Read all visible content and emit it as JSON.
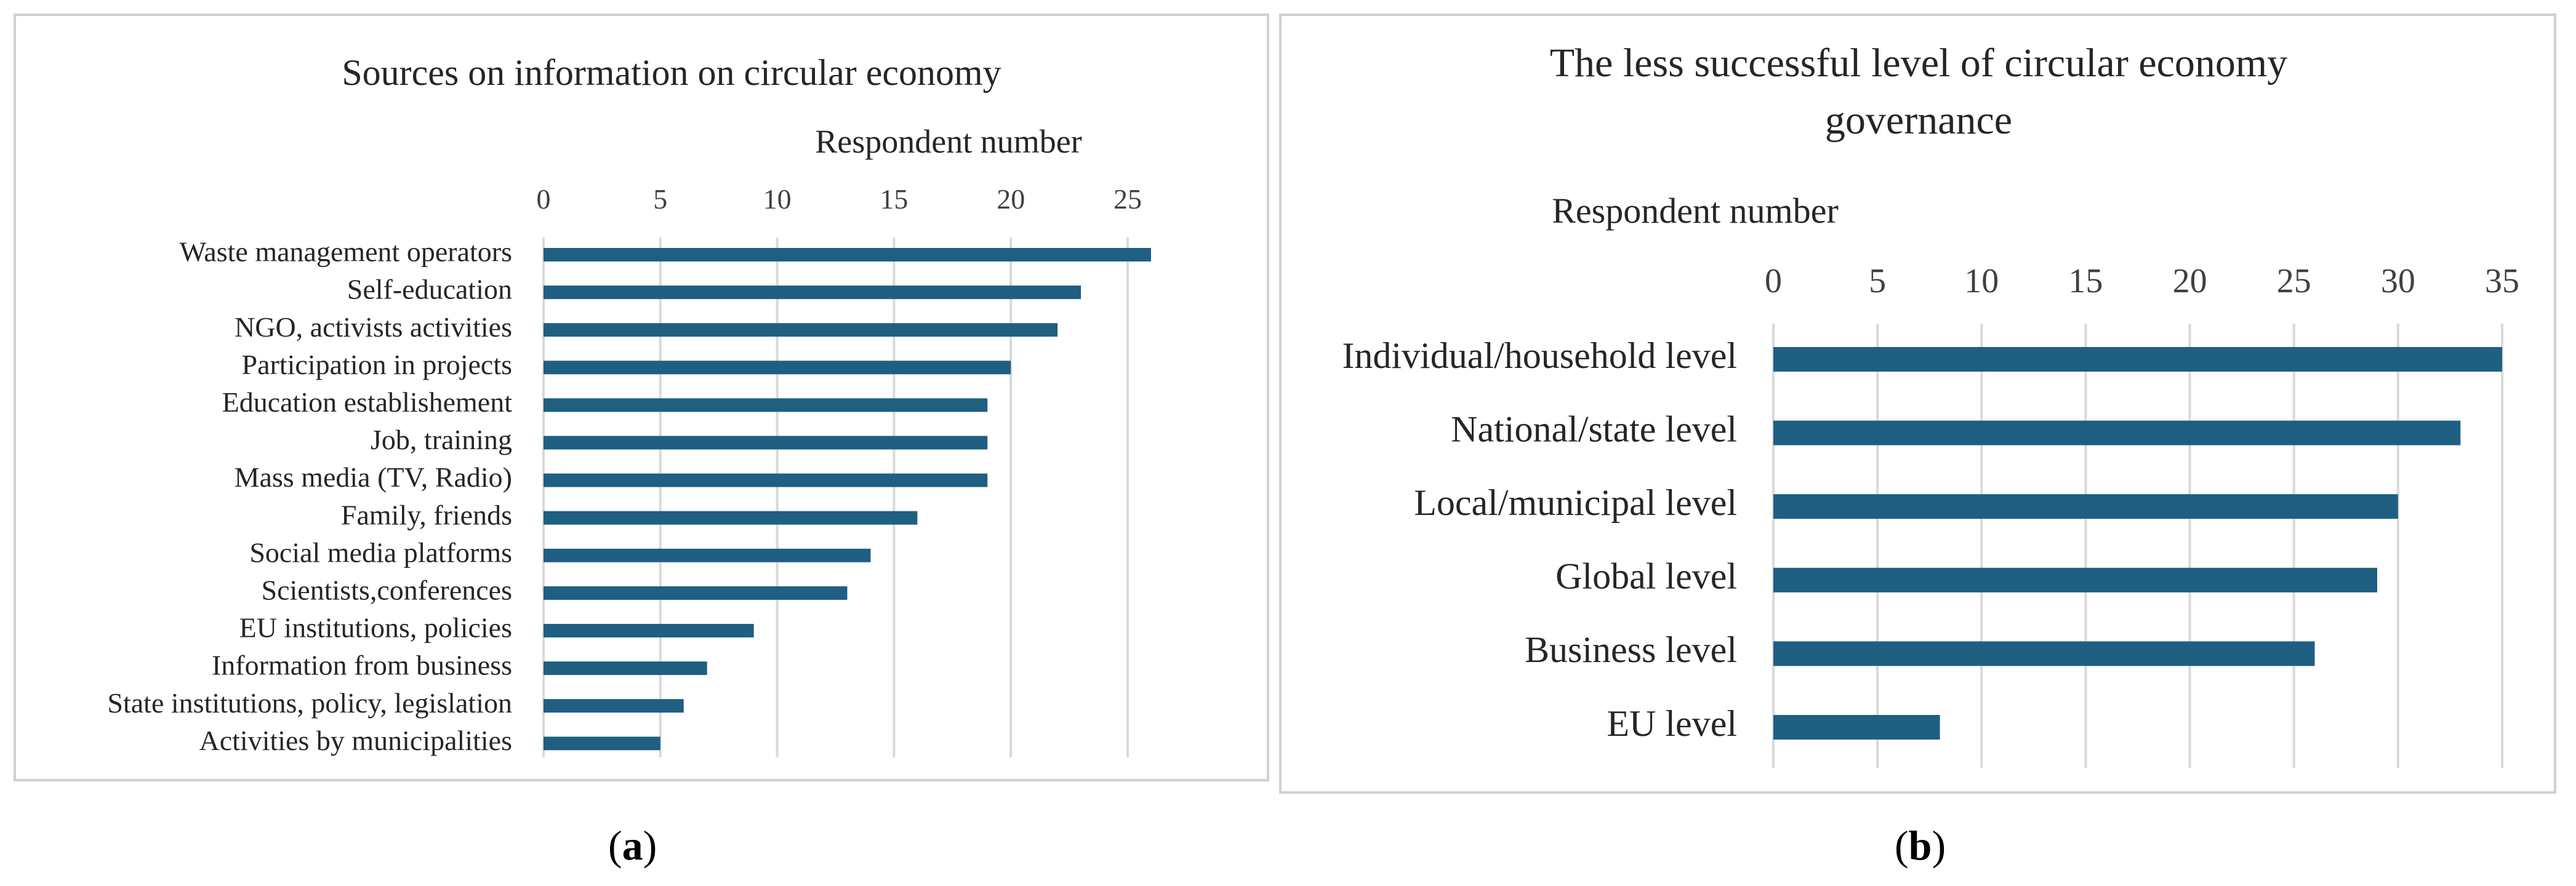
{
  "chart_data": [
    {
      "type": "bar",
      "orientation": "horizontal",
      "title": "Sources on information on circular economy",
      "xlabel": "Respondent number",
      "ylabel": "",
      "xlim": [
        0,
        25
      ],
      "xticks": [
        0,
        5,
        10,
        15,
        20,
        25
      ],
      "grid": true,
      "categories": [
        "Waste management operators",
        "Self-education ",
        "NGO, activists activities",
        "Participation in projects",
        "Education establishement",
        "Job, training",
        "Mass media (TV, Radio)",
        "Family, friends",
        "Social media platforms",
        "Scientists,conferences",
        "EU institutions, policies",
        "Information from business",
        "State institutions, policy, legislation",
        "Activities by municipalities"
      ],
      "values": [
        26,
        23,
        22,
        20,
        19,
        19,
        19,
        16,
        14,
        13,
        9,
        7,
        6,
        5
      ],
      "color": "#1f5f82"
    },
    {
      "type": "bar",
      "orientation": "horizontal",
      "title": "The less successful  level of circular  economy governance",
      "title_lines": [
        "The less successful  level of circular  economy",
        "governance"
      ],
      "xlabel": "Respondent number",
      "ylabel": "",
      "xlim": [
        0,
        35
      ],
      "xticks": [
        0,
        5,
        10,
        15,
        20,
        25,
        30,
        35
      ],
      "grid": true,
      "categories": [
        "Individual/household level",
        "National/state level",
        "Local/municipal level",
        "Global level",
        "Business level",
        "EU level"
      ],
      "values": [
        35,
        33,
        30,
        29,
        26,
        8
      ],
      "color": "#1f5f82"
    }
  ],
  "captions": {
    "a": "a",
    "b": "b"
  }
}
